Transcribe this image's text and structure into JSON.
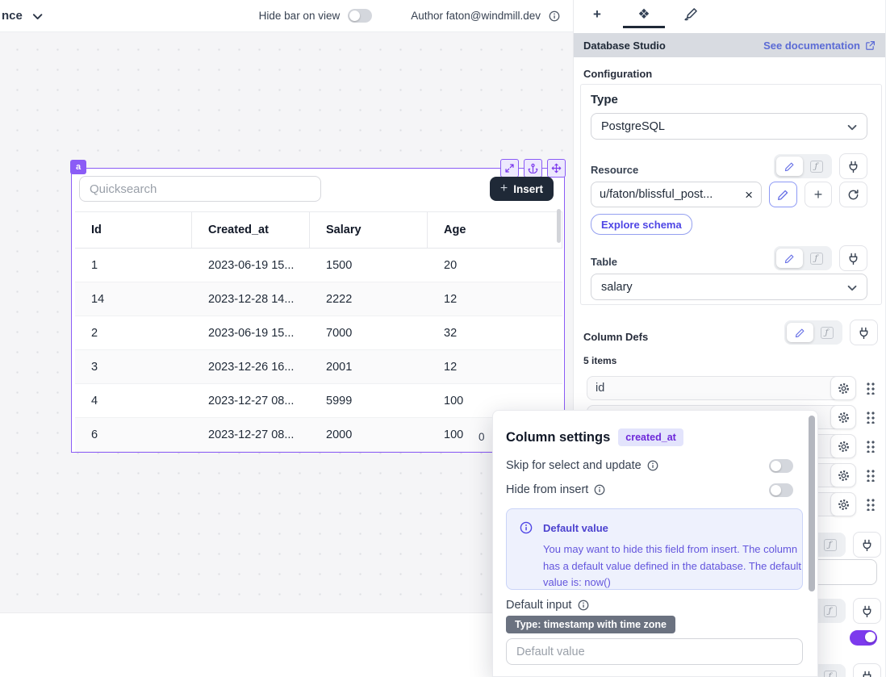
{
  "topbar": {
    "app_selector": "nce",
    "hide_bar_on_view": "Hide bar on view",
    "author": "Author faton@windmill.dev"
  },
  "canvas": {
    "component_tag": "a",
    "quicksearch_placeholder": "Quicksearch",
    "insert_button": "Insert",
    "pagination_count": "0",
    "table": {
      "columns": [
        "Id",
        "Created_at",
        "Salary",
        "Age"
      ],
      "rows": [
        [
          "1",
          "2023-06-19 15...",
          "1500",
          "20"
        ],
        [
          "14",
          "2023-12-28 14...",
          "2222",
          "12"
        ],
        [
          "2",
          "2023-06-19 15...",
          "7000",
          "32"
        ],
        [
          "3",
          "2023-12-26 16...",
          "2001",
          "12"
        ],
        [
          "4",
          "2023-12-27 08...",
          "5999",
          "100"
        ],
        [
          "6",
          "2023-12-27 08...",
          "2000",
          "100"
        ]
      ]
    }
  },
  "panel": {
    "header_title": "Database Studio",
    "doc_link": "See documentation",
    "configuration_label": "Configuration",
    "type_label": "Type",
    "type_value": "PostgreSQL",
    "resource_label": "Resource",
    "resource_value": "u/faton/blissful_post...",
    "explore_schema_button": "Explore schema",
    "table_label": "Table",
    "table_value": "salary",
    "column_defs_label": "Column Defs",
    "items_count": "5 items",
    "column_items": [
      "id",
      "",
      "",
      "",
      ""
    ]
  },
  "popup": {
    "title": "Column settings",
    "column_badge": "created_at",
    "skip_label": "Skip for select and update",
    "hide_label": "Hide from insert",
    "info_title": "Default value",
    "info_body": "You may want to hide this field from insert. The column has a default value defined in the database. The default value is: now()",
    "default_input_label": "Default input",
    "type_badge": "Type: timestamp with time zone",
    "default_value_placeholder": "Default value"
  },
  "colors": {
    "selection_purple": "#8b5cf6",
    "accent_indigo": "#5b6bd5",
    "toggle_on_purple": "#7c3aed",
    "insert_button_bg": "#1f2937",
    "info_box_bg": "#eef1fd",
    "type_badge_bg": "#6b7280"
  }
}
